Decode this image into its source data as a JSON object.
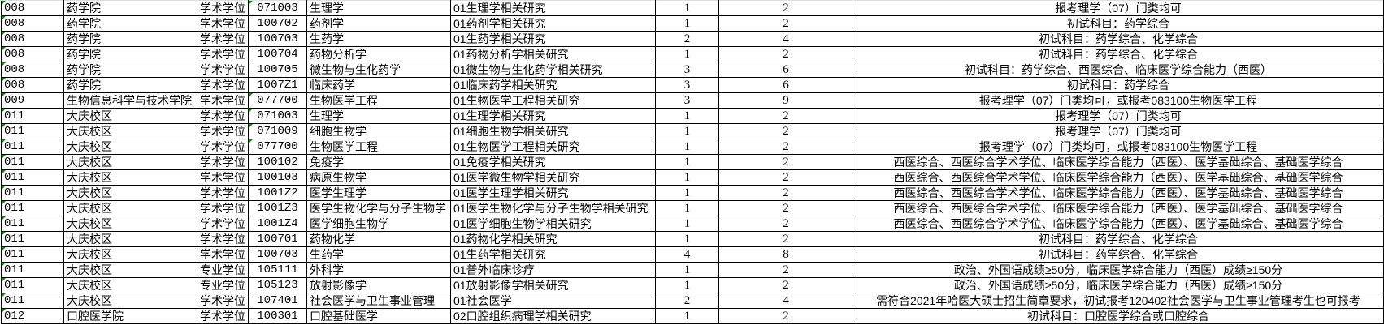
{
  "rows": [
    {
      "dept_code": "008",
      "dept": "药学院",
      "degree": "学术学位",
      "major_code": "071003",
      "major": "生理学",
      "direction": "01生理学相关研究",
      "plan": "1",
      "quota": "2",
      "note": "报考理学（07）门类均可",
      "code_flag": true
    },
    {
      "dept_code": "008",
      "dept": "药学院",
      "degree": "学术学位",
      "major_code": "100702",
      "major": "药剂学",
      "direction": "01药剂学相关研究",
      "plan": "1",
      "quota": "2",
      "note": "初试科目：药学综合",
      "code_flag": false
    },
    {
      "dept_code": "008",
      "dept": "药学院",
      "degree": "学术学位",
      "major_code": "100703",
      "major": "生药学",
      "direction": "01生药学相关研究",
      "plan": "2",
      "quota": "4",
      "note": "初试科目：药学综合、化学综合",
      "code_flag": false
    },
    {
      "dept_code": "008",
      "dept": "药学院",
      "degree": "学术学位",
      "major_code": "100704",
      "major": "药物分析学",
      "direction": "01药物分析学相关研究",
      "plan": "1",
      "quota": "2",
      "note": "初试科目：药学综合、化学综合",
      "code_flag": false
    },
    {
      "dept_code": "008",
      "dept": "药学院",
      "degree": "学术学位",
      "major_code": "100705",
      "major": "微生物与生化药学",
      "direction": "01微生物与生化药学相关研究",
      "plan": "3",
      "quota": "6",
      "note": "初试科目：药学综合、西医综合、临床医学综合能力（西医）",
      "code_flag": false
    },
    {
      "dept_code": "008",
      "dept": "药学院",
      "degree": "学术学位",
      "major_code": "1007Z1",
      "major": "临床药学",
      "direction": "01临床药学相关研究",
      "plan": "3",
      "quota": "6",
      "note": "初试科目：药学综合",
      "code_flag": false
    },
    {
      "dept_code": "009",
      "dept": "生物信息科学与技术学院",
      "degree": "学术学位",
      "major_code": "077700",
      "major": "生物医学工程",
      "direction": "01生物医学工程相关研究",
      "plan": "3",
      "quota": "9",
      "note": "报考理学（07）门类均可，或报考083100生物医学工程",
      "code_flag": true
    },
    {
      "dept_code": "011",
      "dept": "大庆校区",
      "degree": "学术学位",
      "major_code": "071003",
      "major": "生理学",
      "direction": "01生理学相关研究",
      "plan": "1",
      "quota": "2",
      "note": "报考理学（07）门类均可",
      "code_flag": true
    },
    {
      "dept_code": "011",
      "dept": "大庆校区",
      "degree": "学术学位",
      "major_code": "071009",
      "major": "细胞生物学",
      "direction": "01细胞生物学相关研究",
      "plan": "1",
      "quota": "2",
      "note": "报考理学（07）门类均可",
      "code_flag": true
    },
    {
      "dept_code": "011",
      "dept": "大庆校区",
      "degree": "学术学位",
      "major_code": "077700",
      "major": "生物医学工程",
      "direction": "01生物医学工程相关研究",
      "plan": "1",
      "quota": "2",
      "note": "报考理学（07）门类均可，或报考083100生物医学工程",
      "code_flag": true
    },
    {
      "dept_code": "011",
      "dept": "大庆校区",
      "degree": "学术学位",
      "major_code": "100102",
      "major": "免疫学",
      "direction": "01免疫学相关研究",
      "plan": "1",
      "quota": "2",
      "note": "西医综合、西医综合学术学位、临床医学综合能力（西医）、医学基础综合、基础医学综合",
      "code_flag": false
    },
    {
      "dept_code": "011",
      "dept": "大庆校区",
      "degree": "学术学位",
      "major_code": "100103",
      "major": "病原生物学",
      "direction": "01医学微生物学相关研究",
      "plan": "1",
      "quota": "2",
      "note": "西医综合、西医综合学术学位、临床医学综合能力（西医）、医学基础综合、基础医学综合",
      "code_flag": false
    },
    {
      "dept_code": "011",
      "dept": "大庆校区",
      "degree": "学术学位",
      "major_code": "1001Z2",
      "major": "医学生理学",
      "direction": "01医学生理学相关研究",
      "plan": "1",
      "quota": "2",
      "note": "西医综合、西医综合学术学位、临床医学综合能力（西医）、医学基础综合、基础医学综合",
      "code_flag": false
    },
    {
      "dept_code": "011",
      "dept": "大庆校区",
      "degree": "学术学位",
      "major_code": "1001Z3",
      "major": "医学生物化学与分子生物学",
      "direction": "01医学生物化学与分子生物学相关研究",
      "plan": "1",
      "quota": "2",
      "note": "西医综合、西医综合学术学位、临床医学综合能力（西医）、医学基础综合、基础医学综合",
      "code_flag": false
    },
    {
      "dept_code": "011",
      "dept": "大庆校区",
      "degree": "学术学位",
      "major_code": "1001Z4",
      "major": "医学细胞生物学",
      "direction": "01医学细胞生物学相关研究",
      "plan": "1",
      "quota": "2",
      "note": "西医综合、西医综合学术学位、临床医学综合能力（西医）、医学基础综合、基础医学综合",
      "code_flag": false
    },
    {
      "dept_code": "011",
      "dept": "大庆校区",
      "degree": "学术学位",
      "major_code": "100701",
      "major": "药物化学",
      "direction": "01药物化学相关研究",
      "plan": "1",
      "quota": "2",
      "note": "初试科目：药学综合、化学综合",
      "code_flag": false
    },
    {
      "dept_code": "011",
      "dept": "大庆校区",
      "degree": "学术学位",
      "major_code": "100703",
      "major": "生药学",
      "direction": "01生药学相关研究",
      "plan": "4",
      "quota": "8",
      "note": "初试科目：药学综合、化学综合",
      "code_flag": false
    },
    {
      "dept_code": "011",
      "dept": "大庆校区",
      "degree": "专业学位",
      "major_code": "105111",
      "major": "外科学",
      "direction": "01普外临床诊疗",
      "plan": "1",
      "quota": "2",
      "note": "政治、外国语成绩≥50分，临床医学综合能力（西医）成绩≥150分",
      "code_flag": false
    },
    {
      "dept_code": "011",
      "dept": "大庆校区",
      "degree": "专业学位",
      "major_code": "105123",
      "major": "放射影像学",
      "direction": "01放射影像学相关研究",
      "plan": "1",
      "quota": "2",
      "note": "政治、外国语成绩≥50分，临床医学综合能力（西医）成绩≥150分",
      "code_flag": false
    },
    {
      "dept_code": "011",
      "dept": "大庆校区",
      "degree": "学术学位",
      "major_code": "107401",
      "major": "社会医学与卫生事业管理",
      "direction": "01社会医学",
      "plan": "2",
      "quota": "4",
      "note": "需符合2021年哈医大硕士招生简章要求，初试报考120402社会医学与卫生事业管理考生也可报考",
      "code_flag": false
    },
    {
      "dept_code": "012",
      "dept": "口腔医学院",
      "degree": "学术学位",
      "major_code": "100301",
      "major": "口腔基础医学",
      "direction": "02口腔组织病理学相关研究",
      "plan": "1",
      "quota": "2",
      "note": "初试科目：口腔医学综合或口腔综合",
      "code_flag": false
    }
  ],
  "colors": {
    "grid": "#000000",
    "text_number_flag": "#1e7d1e",
    "top_border": "#d6dfea"
  }
}
